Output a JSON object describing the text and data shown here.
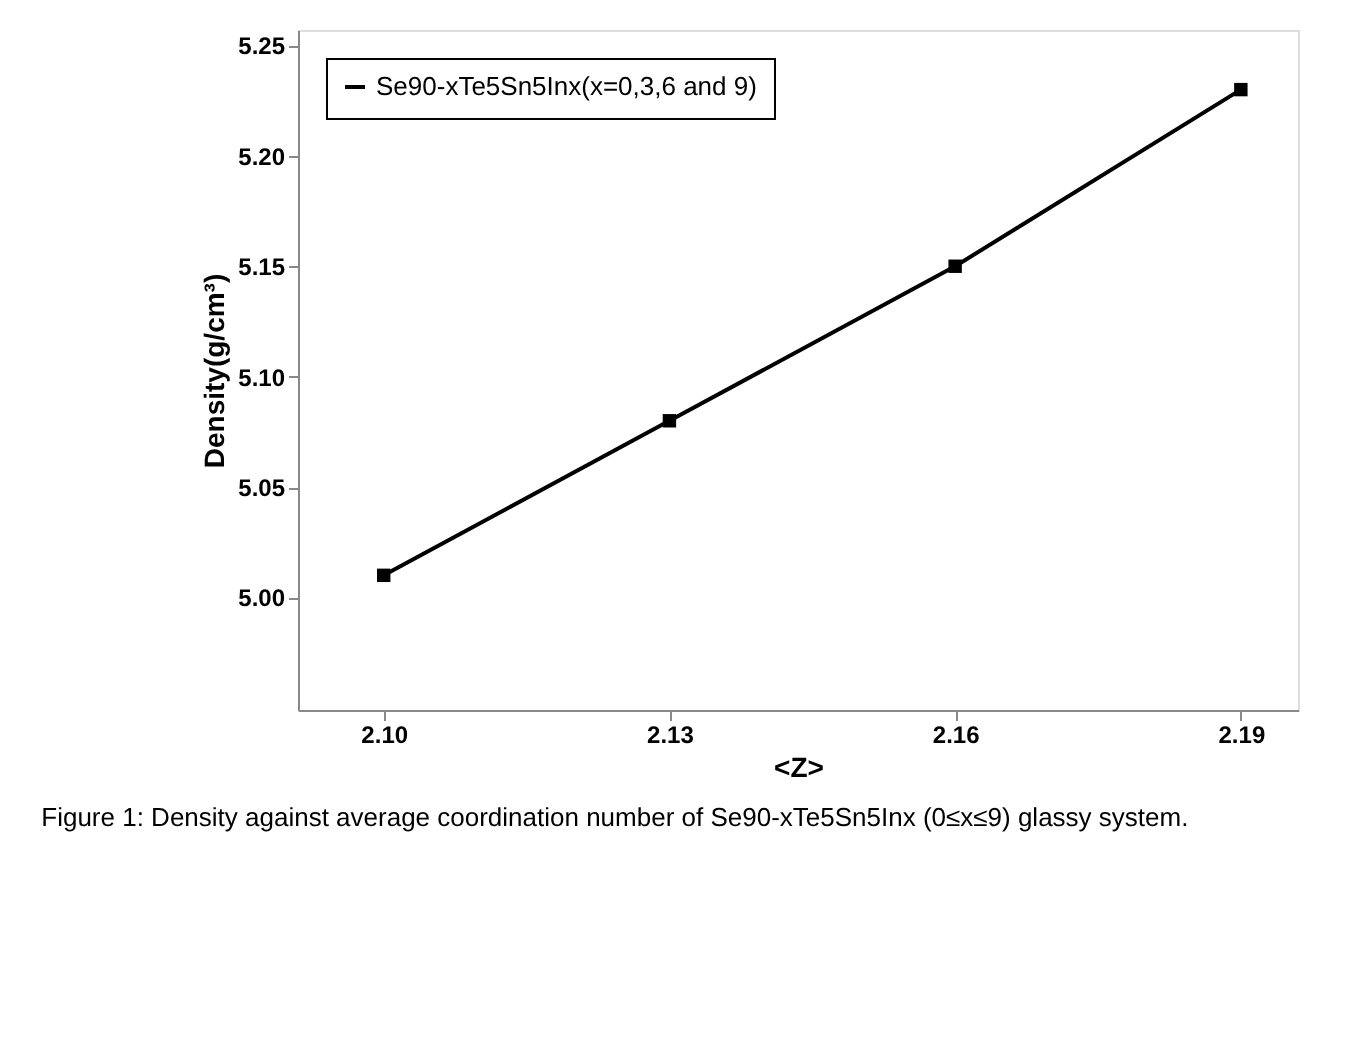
{
  "chart_data": {
    "type": "line",
    "xlabel": "<Z>",
    "ylabel": "Density(g/cm³)",
    "x": [
      2.1,
      2.13,
      2.16,
      2.19
    ],
    "series": [
      {
        "name": "Se90-xTe5Sn5Inx(x=0,3,6 and 9)",
        "color": "#000000",
        "values": [
          5.01,
          5.08,
          5.15,
          5.23
        ]
      }
    ],
    "xlim": [
      2.091,
      2.196
    ],
    "xticks": [
      {
        "value": 2.1,
        "label": "2.10"
      },
      {
        "value": 2.13,
        "label": "2.13"
      },
      {
        "value": 2.16,
        "label": "2.16"
      },
      {
        "value": 2.19,
        "label": "2.19"
      }
    ],
    "ylim": [
      4.949,
      5.257
    ],
    "yticks": [
      {
        "value": 5.0,
        "label": "5.00"
      },
      {
        "value": 5.05,
        "label": "5.05"
      },
      {
        "value": 5.1,
        "label": "5.10"
      },
      {
        "value": 5.15,
        "label": "5.15"
      },
      {
        "value": 5.2,
        "label": "5.20"
      },
      {
        "value": 5.25,
        "label": "5.25"
      }
    ],
    "marker": "square",
    "line_style": "solid",
    "grid": false,
    "legend": "top left",
    "annotations": [
      "Figure 1: Density against average coordination number of Se90-xTe5Sn5Inx (0≤x≤9) glassy system."
    ]
  }
}
